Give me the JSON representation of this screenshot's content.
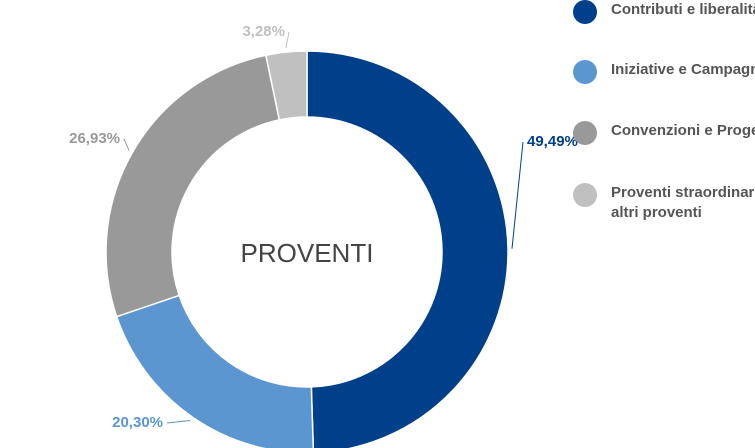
{
  "chart_data": {
    "type": "donut",
    "center_label": "PROVENTI",
    "categories": [
      "Contributi e liberalità",
      "Iniziative e Campagne",
      "Convenzioni e Progetti",
      "Proventi straordinari e altri proventi"
    ],
    "values": [
      49.49,
      20.3,
      26.93,
      3.28
    ],
    "value_labels": [
      "49,49%",
      "20,30%",
      "26,93%",
      "3,28%"
    ],
    "colors": [
      "#003f8a",
      "#5b96d0",
      "#999999",
      "#c0c0c0"
    ],
    "legend": "right"
  }
}
